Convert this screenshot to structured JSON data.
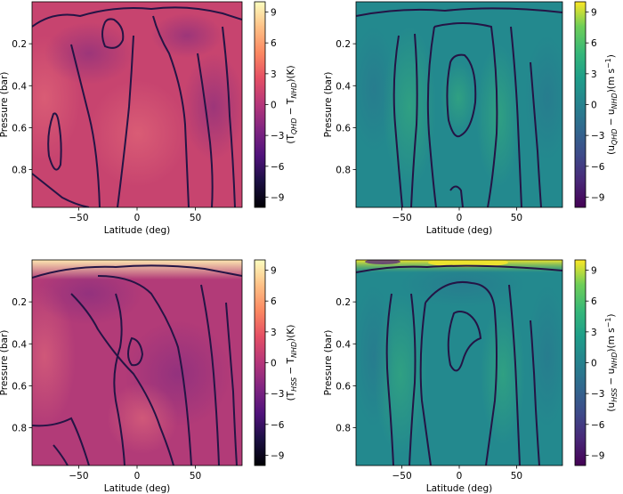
{
  "chart_data": [
    {
      "type": "heatmap",
      "panel": "top-left",
      "xlabel": "Latitude (deg)",
      "ylabel": "Pressure (bar)",
      "cbar_label": "(T_QHD − T_NHD)(K)",
      "cbar_label_parts": {
        "pre": "(T",
        "sub1": "QHD",
        "mid": " − T",
        "sub2": "NHD",
        "post": ")(K)",
        "unit_sup": ""
      },
      "xticks": [
        -50,
        0,
        50
      ],
      "yticks": [
        0.2,
        0.4,
        0.6,
        0.8
      ],
      "cbar_ticks": [
        9,
        6,
        3,
        0,
        -3,
        -6,
        -9
      ],
      "xlim": [
        -90,
        90
      ],
      "ylim": [
        0.98,
        0.0
      ],
      "clim": [
        -10,
        10
      ],
      "colormap": "magma",
      "dominant_value": 1.5
    },
    {
      "type": "heatmap",
      "panel": "top-right",
      "xlabel": "Latitude (deg)",
      "ylabel": "Pressure (bar)",
      "cbar_label": "(u_QHD − u_NHD)(m s⁻¹)",
      "cbar_label_parts": {
        "pre": "(u",
        "sub1": "QHD",
        "mid": " − u",
        "sub2": "NHD",
        "post": ")(m s",
        "unit_sup": "−1"
      },
      "xticks": [
        -50,
        0,
        50
      ],
      "yticks": [
        0.2,
        0.4,
        0.6,
        0.8
      ],
      "cbar_ticks": [
        9,
        6,
        3,
        0,
        -3,
        -6,
        -9
      ],
      "xlim": [
        -90,
        90
      ],
      "ylim": [
        0.98,
        0.0
      ],
      "clim": [
        -10,
        10
      ],
      "colormap": "viridis",
      "dominant_value": 0.5
    },
    {
      "type": "heatmap",
      "panel": "bottom-left",
      "xlabel": "Latitude (deg)",
      "ylabel": "Pressure (bar)",
      "cbar_label": "(T_HSS − T_NHD)(K)",
      "cbar_label_parts": {
        "pre": "(T",
        "sub1": "HSS",
        "mid": " − T",
        "sub2": "NHD",
        "post": ")(K)",
        "unit_sup": ""
      },
      "xticks": [
        -50,
        0,
        50
      ],
      "yticks": [
        0.2,
        0.4,
        0.6,
        0.8
      ],
      "cbar_ticks": [
        9,
        6,
        3,
        0,
        -3,
        -6,
        -9
      ],
      "xlim": [
        -90,
        90
      ],
      "ylim": [
        0.98,
        0.0
      ],
      "clim": [
        -10,
        10
      ],
      "colormap": "magma",
      "dominant_value": 1.0
    },
    {
      "type": "heatmap",
      "panel": "bottom-right",
      "xlabel": "Latitude (deg)",
      "ylabel": "Pressure (bar)",
      "cbar_label": "(u_HSS − u_NHD)(m s⁻¹)",
      "cbar_label_parts": {
        "pre": "(u",
        "sub1": "HSS",
        "mid": " − u",
        "sub2": "NHD",
        "post": ")(m s",
        "unit_sup": "−1"
      },
      "xticks": [
        -50,
        0,
        50
      ],
      "yticks": [
        0.2,
        0.4,
        0.6,
        0.8
      ],
      "cbar_ticks": [
        9,
        6,
        3,
        0,
        -3,
        -6,
        -9
      ],
      "xlim": [
        -90,
        90
      ],
      "ylim": [
        0.98,
        0.0
      ],
      "clim": [
        -10,
        10
      ],
      "colormap": "viridis",
      "dominant_value": 0.5
    }
  ]
}
